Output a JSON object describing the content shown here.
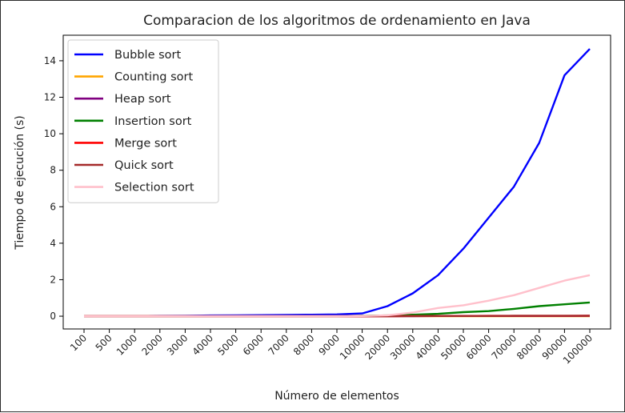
{
  "chart_data": {
    "type": "line",
    "title": "Comparacion de los algoritmos de ordenamiento en Java",
    "xlabel": "Número de elementos",
    "ylabel": "Tiempo de ejecución (s)",
    "categories": [
      "100",
      "500",
      "1000",
      "2000",
      "3000",
      "4000",
      "5000",
      "6000",
      "7000",
      "8000",
      "9000",
      "10000",
      "20000",
      "30000",
      "40000",
      "50000",
      "60000",
      "70000",
      "80000",
      "90000",
      "100000"
    ],
    "ylim": [
      -0.7,
      15.4
    ],
    "yticks": [
      0,
      2,
      4,
      6,
      8,
      10,
      12,
      14
    ],
    "grid": false,
    "legend_position": "top-left",
    "series": [
      {
        "name": "Bubble sort",
        "color": "#0000ff",
        "values": [
          0,
          0.01,
          0.01,
          0.02,
          0.03,
          0.04,
          0.05,
          0.06,
          0.07,
          0.08,
          0.1,
          0.15,
          0.55,
          1.25,
          2.25,
          3.7,
          5.4,
          7.1,
          9.5,
          13.2,
          14.65
        ]
      },
      {
        "name": "Counting sort",
        "color": "#ffa500",
        "values": [
          0,
          0,
          0,
          0,
          0,
          0,
          0,
          0,
          0,
          0,
          0,
          0,
          0,
          0,
          0,
          0,
          0,
          0,
          0,
          0,
          0
        ]
      },
      {
        "name": "Heap sort",
        "color": "#800080",
        "values": [
          0,
          0,
          0,
          0,
          0,
          0,
          0,
          0,
          0,
          0,
          0,
          0,
          0,
          0,
          0.01,
          0.01,
          0.01,
          0.01,
          0.01,
          0.01,
          0.02
        ]
      },
      {
        "name": "Insertion sort",
        "color": "#008000",
        "values": [
          0,
          0,
          0,
          0,
          0,
          0,
          0,
          0,
          0,
          0,
          0,
          0.02,
          0.04,
          0.08,
          0.13,
          0.22,
          0.28,
          0.4,
          0.55,
          0.65,
          0.75
        ]
      },
      {
        "name": "Merge sort",
        "color": "#ff0000",
        "values": [
          0,
          0,
          0,
          0,
          0,
          0,
          0,
          0,
          0,
          0,
          0,
          0,
          0,
          0.01,
          0.01,
          0.01,
          0.02,
          0.02,
          0.02,
          0.02,
          0.03
        ]
      },
      {
        "name": "Quick sort",
        "color": "#a52a2a",
        "values": [
          0,
          0,
          0,
          0,
          0,
          0,
          0,
          0,
          0,
          0,
          0,
          0,
          0,
          0.01,
          0.01,
          0.01,
          0.01,
          0.02,
          0.02,
          0.02,
          0.02
        ]
      },
      {
        "name": "Selection sort",
        "color": "#ffc0cb",
        "values": [
          0,
          0,
          0,
          0,
          0,
          0,
          0,
          0,
          0,
          0,
          0,
          0.01,
          0.05,
          0.2,
          0.45,
          0.6,
          0.85,
          1.15,
          1.55,
          1.95,
          2.25
        ]
      }
    ]
  }
}
